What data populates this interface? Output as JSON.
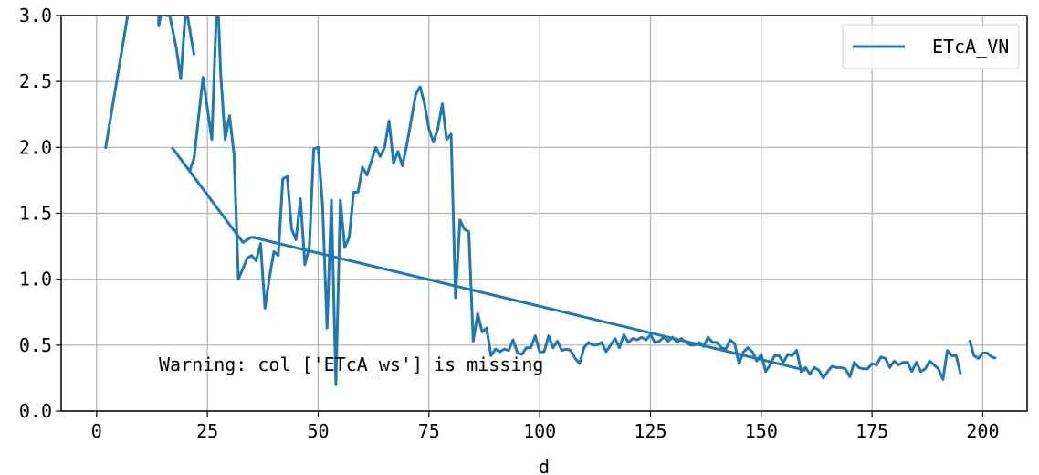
{
  "chart_data": {
    "type": "line",
    "title": "",
    "xlabel": "d",
    "ylabel": "",
    "xlim": [
      -8,
      210
    ],
    "ylim": [
      0,
      3
    ],
    "xticks": [
      0,
      25,
      50,
      75,
      100,
      125,
      150,
      175,
      200
    ],
    "xtick_labels": [
      "0",
      "25",
      "50",
      "75",
      "100",
      "125",
      "150",
      "175",
      "200"
    ],
    "yticks": [
      0,
      0.5,
      1.0,
      1.5,
      2.0,
      2.5,
      3.0
    ],
    "ytick_labels": [
      "0.0",
      "0.5",
      "1.0",
      "1.5",
      "2.0",
      "2.5",
      "3.0"
    ],
    "grid": true,
    "legend_position": "top-right",
    "annotation": "Warning: col ['ETcA_ws'] is missing",
    "colors": {
      "series": "#1f77b4",
      "grid": "#b0b0b0"
    },
    "series": [
      {
        "name": "ETcA_VN",
        "segments": [
          [
            [
              2,
              1.99
            ],
            [
              7,
              3.0
            ]
          ],
          [
            [
              14,
              3.0
            ],
            [
              14,
              2.92
            ],
            [
              14.5,
              3.0
            ]
          ],
          [
            [
              15.5,
              3.0
            ],
            [
              16.5,
              3.0
            ],
            [
              18,
              2.75
            ],
            [
              19,
              2.52
            ],
            [
              20,
              3.0
            ]
          ],
          [
            [
              20.5,
              3.0
            ],
            [
              21,
              2.9
            ],
            [
              22,
              2.7
            ]
          ],
          [
            [
              17,
              2.0
            ],
            [
              21,
              1.82
            ],
            [
              22,
              1.92
            ],
            [
              24,
              2.53
            ],
            [
              26,
              2.06
            ],
            [
              27,
              3.0
            ]
          ],
          [
            [
              27.5,
              3.0
            ],
            [
              28,
              2.56
            ],
            [
              29,
              2.06
            ],
            [
              30,
              2.24
            ],
            [
              31,
              1.95
            ],
            [
              32,
              1.0
            ],
            [
              33,
              1.08
            ],
            [
              34,
              1.16
            ],
            [
              35,
              1.18
            ],
            [
              36,
              1.14
            ],
            [
              37,
              1.27
            ],
            [
              38,
              0.78
            ],
            [
              39,
              1.01
            ],
            [
              40,
              1.21
            ],
            [
              41,
              1.18
            ],
            [
              42,
              1.76
            ],
            [
              43,
              1.78
            ],
            [
              44,
              1.38
            ],
            [
              45,
              1.3
            ],
            [
              46,
              1.61
            ],
            [
              47,
              1.11
            ],
            [
              48,
              1.24
            ],
            [
              49,
              1.99
            ],
            [
              50,
              2.0
            ],
            [
              51,
              1.56
            ],
            [
              52,
              0.63
            ],
            [
              53,
              1.6
            ],
            [
              54,
              0.2
            ],
            [
              55,
              1.6
            ],
            [
              56,
              1.24
            ],
            [
              57,
              1.32
            ],
            [
              58,
              1.66
            ],
            [
              59,
              1.66
            ],
            [
              60,
              1.85
            ],
            [
              61,
              1.79
            ],
            [
              63,
              2.0
            ],
            [
              64,
              1.93
            ],
            [
              65,
              2.0
            ],
            [
              66,
              2.2
            ],
            [
              67,
              1.88
            ],
            [
              68,
              1.97
            ],
            [
              69,
              1.86
            ],
            [
              70,
              2.02
            ],
            [
              72,
              2.4
            ],
            [
              73,
              2.46
            ],
            [
              74,
              2.33
            ],
            [
              75,
              2.14
            ],
            [
              76,
              2.04
            ],
            [
              77,
              2.14
            ],
            [
              78,
              2.33
            ],
            [
              79,
              2.06
            ],
            [
              80,
              2.1
            ],
            [
              81,
              0.86
            ],
            [
              82,
              1.45
            ],
            [
              83,
              1.38
            ],
            [
              84,
              1.36
            ],
            [
              85,
              0.53
            ],
            [
              86,
              0.74
            ],
            [
              87,
              0.6
            ],
            [
              88,
              0.63
            ],
            [
              89,
              0.42
            ],
            [
              90,
              0.47
            ],
            [
              91,
              0.45
            ],
            [
              92,
              0.47
            ],
            [
              93,
              0.46
            ],
            [
              94,
              0.54
            ],
            [
              95,
              0.44
            ],
            [
              96,
              0.43
            ],
            [
              97,
              0.48
            ],
            [
              98,
              0.48
            ],
            [
              99,
              0.57
            ],
            [
              100,
              0.45
            ],
            [
              101,
              0.45
            ],
            [
              102,
              0.57
            ],
            [
              103,
              0.48
            ],
            [
              104,
              0.53
            ],
            [
              105,
              0.46
            ],
            [
              106,
              0.47
            ],
            [
              107,
              0.46
            ],
            [
              108,
              0.4
            ],
            [
              109,
              0.36
            ],
            [
              110,
              0.48
            ],
            [
              111,
              0.52
            ],
            [
              112,
              0.5
            ],
            [
              113,
              0.5
            ],
            [
              114,
              0.52
            ],
            [
              115,
              0.45
            ],
            [
              116,
              0.5
            ],
            [
              117,
              0.55
            ],
            [
              118,
              0.48
            ],
            [
              119,
              0.58
            ],
            [
              120,
              0.52
            ],
            [
              121,
              0.55
            ],
            [
              122,
              0.54
            ],
            [
              123,
              0.56
            ],
            [
              124,
              0.54
            ],
            [
              125,
              0.58
            ],
            [
              126,
              0.52
            ],
            [
              127,
              0.53
            ],
            [
              128,
              0.56
            ],
            [
              129,
              0.53
            ],
            [
              130,
              0.56
            ],
            [
              131,
              0.52
            ],
            [
              132,
              0.55
            ],
            [
              133,
              0.52
            ],
            [
              134,
              0.5
            ],
            [
              135,
              0.5
            ],
            [
              136,
              0.52
            ],
            [
              137,
              0.49
            ],
            [
              138,
              0.56
            ],
            [
              139,
              0.52
            ],
            [
              140,
              0.52
            ],
            [
              141,
              0.48
            ],
            [
              142,
              0.47
            ],
            [
              143,
              0.54
            ],
            [
              144,
              0.51
            ],
            [
              145,
              0.36
            ],
            [
              146,
              0.45
            ],
            [
              147,
              0.48
            ],
            [
              148,
              0.45
            ],
            [
              149,
              0.38
            ],
            [
              150,
              0.43
            ],
            [
              151,
              0.3
            ],
            [
              152,
              0.35
            ],
            [
              153,
              0.42
            ],
            [
              154,
              0.42
            ],
            [
              155,
              0.37
            ],
            [
              156,
              0.43
            ],
            [
              157,
              0.42
            ],
            [
              158,
              0.46
            ],
            [
              159,
              0.3
            ],
            [
              160,
              0.33
            ],
            [
              161,
              0.28
            ],
            [
              162,
              0.33
            ],
            [
              163,
              0.31
            ],
            [
              164,
              0.25
            ],
            [
              165,
              0.3
            ],
            [
              166,
              0.34
            ],
            [
              167,
              0.33
            ],
            [
              168,
              0.33
            ],
            [
              169,
              0.32
            ],
            [
              170,
              0.26
            ],
            [
              171,
              0.37
            ],
            [
              172,
              0.33
            ],
            [
              173,
              0.32
            ],
            [
              174,
              0.32
            ],
            [
              175,
              0.36
            ],
            [
              176,
              0.35
            ],
            [
              177,
              0.41
            ],
            [
              178,
              0.4
            ],
            [
              179,
              0.33
            ],
            [
              180,
              0.38
            ],
            [
              181,
              0.35
            ],
            [
              182,
              0.37
            ],
            [
              183,
              0.37
            ],
            [
              184,
              0.3
            ],
            [
              185,
              0.37
            ],
            [
              186,
              0.3
            ],
            [
              187,
              0.32
            ],
            [
              188,
              0.38
            ],
            [
              189,
              0.35
            ],
            [
              190,
              0.32
            ],
            [
              191,
              0.24
            ],
            [
              192,
              0.46
            ],
            [
              193,
              0.42
            ],
            [
              194,
              0.42
            ],
            [
              195,
              0.28
            ]
          ],
          [
            [
              197,
              0.54
            ],
            [
              198,
              0.42
            ],
            [
              199,
              0.4
            ],
            [
              200,
              0.44
            ],
            [
              201,
              0.44
            ],
            [
              202,
              0.41
            ],
            [
              203,
              0.4
            ]
          ],
          [
            [
              21,
              1.82
            ],
            [
              33,
              1.28
            ],
            [
              35,
              1.32
            ],
            [
              160,
              0.31
            ]
          ]
        ]
      }
    ]
  }
}
